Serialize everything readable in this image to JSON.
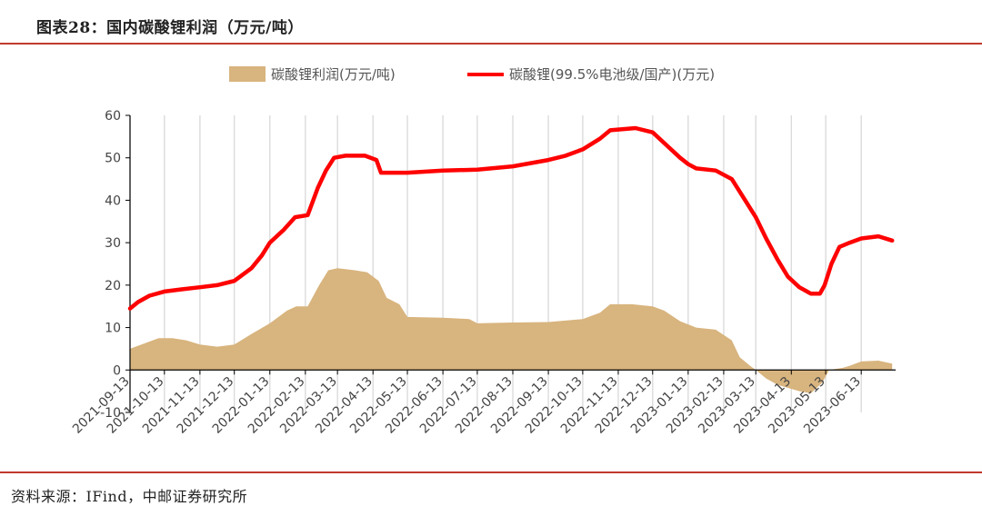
{
  "header": {
    "title": "图表28：国内碳酸锂利润（万元/吨）"
  },
  "footer": {
    "source": "资料来源：IFind，中邮证券研究所"
  },
  "colors": {
    "profit": "#d8b47e",
    "price": "#ff0000",
    "grid": "#d9d9d9",
    "rule": "#c0392b"
  },
  "chart_data": {
    "type": "area+line",
    "legend_position": "top",
    "grid": "vertical",
    "ylim": [
      -10,
      60
    ],
    "yticks": [
      -10,
      0,
      10,
      20,
      30,
      40,
      50,
      60
    ],
    "xlim": [
      "2021-09-13",
      "2023-07-13"
    ],
    "xtick_labels": [
      "2021-09-13",
      "2021-10-13",
      "2021-11-13",
      "2021-12-13",
      "2022-01-13",
      "2022-02-13",
      "2022-03-13",
      "2022-04-13",
      "2022-05-13",
      "2022-06-13",
      "2022-07-13",
      "2022-08-13",
      "2022-09-13",
      "2022-10-13",
      "2022-11-13",
      "2022-12-13",
      "2023-01-13",
      "2023-02-13",
      "2023-03-13",
      "2023-04-13",
      "2023-05-13",
      "2023-06-13"
    ],
    "series": [
      {
        "name": "碳酸锂利润(万元/吨)",
        "kind": "area",
        "points": [
          [
            "2021-09-13",
            5
          ],
          [
            "2021-09-28",
            6.5
          ],
          [
            "2021-10-08",
            7.5
          ],
          [
            "2021-10-20",
            7.5
          ],
          [
            "2021-11-01",
            7
          ],
          [
            "2021-11-13",
            6
          ],
          [
            "2021-11-28",
            5.5
          ],
          [
            "2021-12-13",
            6
          ],
          [
            "2021-12-28",
            8.5
          ],
          [
            "2022-01-13",
            11
          ],
          [
            "2022-01-28",
            14
          ],
          [
            "2022-02-05",
            15
          ],
          [
            "2022-02-15",
            15
          ],
          [
            "2022-02-25",
            20
          ],
          [
            "2022-03-05",
            23.5
          ],
          [
            "2022-03-13",
            24
          ],
          [
            "2022-03-28",
            23.5
          ],
          [
            "2022-04-08",
            23
          ],
          [
            "2022-04-18",
            21
          ],
          [
            "2022-04-25",
            17
          ],
          [
            "2022-05-06",
            15.5
          ],
          [
            "2022-05-13",
            12.5
          ],
          [
            "2022-06-13",
            12.3
          ],
          [
            "2022-07-06",
            12
          ],
          [
            "2022-07-13",
            11
          ],
          [
            "2022-08-13",
            11.2
          ],
          [
            "2022-09-13",
            11.3
          ],
          [
            "2022-10-13",
            12
          ],
          [
            "2022-10-28",
            13.5
          ],
          [
            "2022-11-06",
            15.5
          ],
          [
            "2022-11-25",
            15.5
          ],
          [
            "2022-12-13",
            15
          ],
          [
            "2022-12-23",
            14
          ],
          [
            "2023-01-06",
            11.5
          ],
          [
            "2023-01-20",
            10
          ],
          [
            "2023-02-06",
            9.5
          ],
          [
            "2023-02-20",
            7
          ],
          [
            "2023-02-27",
            3
          ],
          [
            "2023-03-08",
            1
          ],
          [
            "2023-03-13",
            0
          ],
          [
            "2023-03-22",
            -2
          ],
          [
            "2023-04-01",
            -3.5
          ],
          [
            "2023-04-20",
            -5
          ],
          [
            "2023-04-30",
            -5.5
          ],
          [
            "2023-05-10",
            -3
          ],
          [
            "2023-05-16",
            0
          ],
          [
            "2023-05-28",
            0.5
          ],
          [
            "2023-06-03",
            1
          ],
          [
            "2023-06-13",
            2
          ],
          [
            "2023-06-28",
            2.2
          ],
          [
            "2023-07-10",
            1.5
          ]
        ]
      },
      {
        "name": "碳酸锂(99.5%电池级/国产)(万元)",
        "kind": "line",
        "points": [
          [
            "2021-09-13",
            14.5
          ],
          [
            "2021-09-20",
            16
          ],
          [
            "2021-09-30",
            17.5
          ],
          [
            "2021-10-13",
            18.5
          ],
          [
            "2021-10-28",
            19
          ],
          [
            "2021-11-13",
            19.5
          ],
          [
            "2021-11-28",
            20
          ],
          [
            "2021-12-13",
            21
          ],
          [
            "2021-12-28",
            24
          ],
          [
            "2022-01-06",
            27
          ],
          [
            "2022-01-13",
            30
          ],
          [
            "2022-01-25",
            33
          ],
          [
            "2022-02-04",
            36
          ],
          [
            "2022-02-15",
            36.5
          ],
          [
            "2022-02-24",
            43
          ],
          [
            "2022-03-03",
            47
          ],
          [
            "2022-03-10",
            50
          ],
          [
            "2022-03-20",
            50.5
          ],
          [
            "2022-04-06",
            50.5
          ],
          [
            "2022-04-16",
            49.5
          ],
          [
            "2022-04-20",
            46.5
          ],
          [
            "2022-05-13",
            46.5
          ],
          [
            "2022-06-13",
            47
          ],
          [
            "2022-07-13",
            47.2
          ],
          [
            "2022-08-13",
            48
          ],
          [
            "2022-09-13",
            49.5
          ],
          [
            "2022-09-28",
            50.5
          ],
          [
            "2022-10-13",
            52
          ],
          [
            "2022-10-28",
            54.5
          ],
          [
            "2022-11-06",
            56.5
          ],
          [
            "2022-11-28",
            57
          ],
          [
            "2022-12-13",
            56
          ],
          [
            "2022-12-23",
            53.5
          ],
          [
            "2023-01-06",
            50
          ],
          [
            "2023-01-13",
            48.5
          ],
          [
            "2023-01-20",
            47.5
          ],
          [
            "2023-02-06",
            47
          ],
          [
            "2023-02-20",
            45
          ],
          [
            "2023-02-27",
            42
          ],
          [
            "2023-03-13",
            36
          ],
          [
            "2023-03-22",
            31
          ],
          [
            "2023-04-01",
            26
          ],
          [
            "2023-04-10",
            22
          ],
          [
            "2023-04-20",
            19.5
          ],
          [
            "2023-04-30",
            18
          ],
          [
            "2023-05-08",
            18
          ],
          [
            "2023-05-12",
            20
          ],
          [
            "2023-05-18",
            25
          ],
          [
            "2023-05-25",
            29
          ],
          [
            "2023-06-03",
            30
          ],
          [
            "2023-06-13",
            31
          ],
          [
            "2023-06-28",
            31.5
          ],
          [
            "2023-07-10",
            30.5
          ]
        ]
      }
    ]
  }
}
